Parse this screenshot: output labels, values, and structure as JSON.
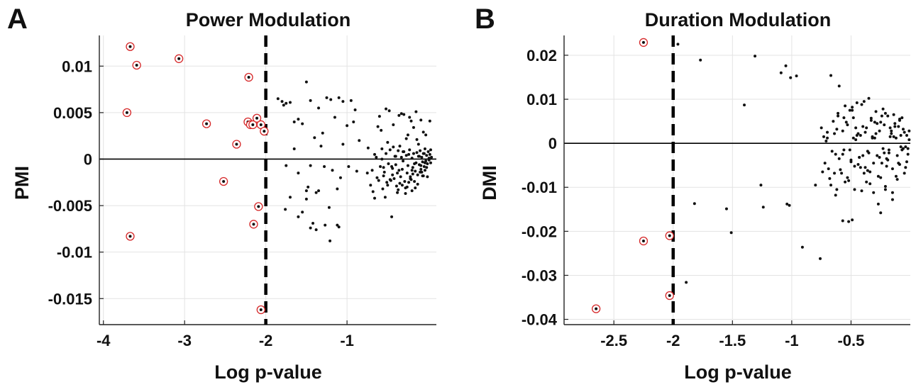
{
  "chart_data": [
    {
      "type": "scatter",
      "panel_label": "A",
      "title": "Power Modulation",
      "xlabel": "Log p-value",
      "ylabel": "PMI",
      "xlim": [
        -4.05,
        0.1
      ],
      "ylim": [
        -0.0178,
        0.0133
      ],
      "xticks": [
        -4,
        -3,
        -2,
        -1
      ],
      "xtick_labels": [
        "-4",
        "-3",
        "-2",
        "-1"
      ],
      "yticks": [
        -0.015,
        -0.01,
        -0.005,
        0,
        0.005,
        0.01
      ],
      "ytick_labels": [
        "-0.015",
        "-0.01",
        "-0.005",
        "0",
        "0.005",
        "0.01"
      ],
      "grid": true,
      "threshold": -2,
      "colors": {
        "point": "#111111",
        "highlight_ring": "#d62728",
        "threshold": "#000000",
        "grid": "#e3e3e3"
      },
      "series": [
        {
          "style": "highlighted",
          "x": [
            -3.67,
            -3.59,
            -3.71,
            -3.67,
            -3.07,
            -2.73,
            -2.52,
            -2.36,
            -2.21,
            -2.22,
            -2.19,
            -2.16,
            -2.11,
            -2.06,
            -2.02,
            -2.09,
            -2.15,
            -2.06
          ],
          "y": [
            0.0121,
            0.0101,
            0.005,
            -0.0083,
            0.0108,
            0.0038,
            -0.0024,
            0.0016,
            0.0088,
            0.004,
            0.0037,
            0.0037,
            0.0044,
            0.0037,
            0.003,
            -0.0051,
            -0.007,
            -0.0162
          ]
        },
        {
          "style": "plain",
          "x": [
            -1.85,
            -1.8,
            -1.75,
            -1.7,
            -1.6,
            -1.5,
            -1.45,
            -1.35,
            -1.25,
            -1.2,
            -1.1,
            -1.05,
            -0.95,
            -0.9,
            -1.78,
            -1.65,
            -1.55,
            -1.4,
            -1.32,
            -1.15,
            -1.0,
            -0.92,
            -1.45,
            -1.65,
            -1.3,
            -1.05,
            -0.85,
            -0.75,
            -1.75,
            -1.6,
            -1.48,
            -1.38,
            -1.28,
            -1.18,
            -1.08,
            -0.98,
            -0.88,
            -1.7,
            -1.5,
            -1.35,
            -1.22,
            -1.12,
            -1.55,
            -1.42,
            -1.27,
            -1.1,
            -1.76,
            -1.6,
            -1.45,
            -1.38,
            -1.21,
            -1.12,
            -1.5
          ],
          "y": [
            0.0065,
            0.0062,
            0.006,
            0.0061,
            0.0043,
            0.0083,
            0.0063,
            0.0055,
            0.0066,
            0.0064,
            0.0066,
            0.0062,
            0.0063,
            0.0053,
            0.0058,
            0.004,
            0.0038,
            0.0023,
            0.0014,
            0.0045,
            0.0036,
            0.004,
            -0.0007,
            0.0011,
            0.0028,
            0.0016,
            0.002,
            -0.0015,
            -0.0007,
            -0.0015,
            -0.003,
            -0.0036,
            -0.0008,
            -0.0012,
            -0.002,
            -0.0008,
            -0.0013,
            -0.0041,
            -0.0043,
            -0.0034,
            -0.0052,
            -0.0032,
            -0.0057,
            -0.0069,
            -0.0071,
            -0.0073,
            -0.0054,
            -0.0062,
            -0.0074,
            -0.0076,
            -0.0088,
            -0.0071,
            -0.0034
          ]
        },
        {
          "style": "plain",
          "x": [
            -0.74,
            -0.69,
            -0.66,
            -0.61,
            -0.57,
            -0.55,
            -0.52,
            -0.5,
            -0.47,
            -0.45,
            -0.43,
            -0.42,
            -0.4,
            -0.38,
            -0.37,
            -0.35,
            -0.33,
            -0.32,
            -0.3,
            -0.28,
            -0.27,
            -0.25,
            -0.23,
            -0.22,
            -0.2,
            -0.19,
            -0.18,
            -0.16,
            -0.15,
            -0.14,
            -0.13,
            -0.12,
            -0.11,
            -0.1,
            -0.09,
            -0.08,
            -0.07,
            -0.06,
            -0.05,
            -0.04,
            -0.03,
            -0.02,
            -0.01,
            0.0,
            0.01,
            0.02,
            0.03,
            0.04,
            -0.71,
            -0.64,
            -0.59,
            -0.54,
            -0.49,
            -0.46,
            -0.41,
            -0.36,
            -0.34,
            -0.31,
            -0.26,
            -0.24,
            -0.21,
            -0.17,
            -0.11,
            -0.08,
            -0.05,
            -0.02,
            0.01,
            -0.68,
            -0.63,
            -0.56,
            -0.51,
            -0.44,
            -0.39,
            -0.29,
            -0.19,
            -0.13,
            -0.07,
            -0.04,
            -0.6,
            -0.48,
            -0.33,
            -0.23,
            -0.15,
            -0.09,
            -0.03,
            0.02,
            -0.58,
            -0.43,
            -0.36,
            -0.27,
            -0.18,
            -0.12,
            -0.06,
            0.03,
            -0.52,
            -0.3,
            -0.21,
            -0.14,
            -0.53,
            -0.38,
            -0.28,
            -0.16,
            -0.01,
            -0.66,
            -0.47,
            -0.24,
            -0.2,
            -0.1,
            -0.45,
            -0.32,
            -0.22,
            -0.06,
            -0.5,
            -0.62,
            -0.55,
            -0.4,
            -0.35,
            -0.25,
            -0.17,
            -0.44,
            -0.31,
            -0.26,
            -0.2,
            -0.09,
            -0.04,
            -0.37,
            -0.57
          ],
          "y": [
            0.0012,
            -0.0012,
            0.0005,
            -0.0023,
            0.0011,
            -0.0018,
            0.0006,
            -0.0028,
            0.001,
            -0.0008,
            0.0013,
            -0.0021,
            0.0003,
            -0.0015,
            0.0009,
            -0.0026,
            0.0002,
            -0.0011,
            0.0008,
            -0.0031,
            0.0004,
            -0.0007,
            0.001,
            -0.0019,
            0.0001,
            -0.0009,
            0.0006,
            -0.0013,
            -0.0004,
            0.0007,
            -0.0017,
            0.0003,
            -0.0006,
            0.0009,
            -0.0011,
            0.0002,
            -0.0003,
            0.0006,
            -0.0008,
            0.0011,
            -0.0002,
            0.0004,
            -0.0005,
            0.0008,
            -0.0001,
            0.0005,
            -0.0004,
            0.0002,
            -0.0028,
            0.0002,
            -0.0008,
            -0.0014,
            -0.0005,
            -0.0023,
            0.0003,
            -0.0012,
            -0.0019,
            -0.0002,
            -0.0015,
            0.0005,
            -0.0022,
            -0.0005,
            0.0003,
            -0.0014,
            0.0006,
            -0.0009,
            0.0001,
            -0.0035,
            -0.002,
            -0.0032,
            -0.0025,
            -0.001,
            -0.0029,
            -0.0024,
            -0.0016,
            -0.0027,
            -0.0018,
            -0.0012,
            0.0046,
            0.0052,
            0.0049,
            0.0045,
            0.0051,
            0.0042,
            0.0026,
            0.0041,
            0.0031,
            0.0037,
            0.0047,
            0.0022,
            0.0034,
            0.0016,
            0.0029,
            0.001,
            0.0054,
            0.0048,
            0.0041,
            0.0021,
            -0.0041,
            -0.0036,
            -0.0037,
            -0.0031,
            -0.0019,
            -0.0042,
            -0.0022,
            -0.0025,
            -0.0034,
            -0.0014,
            -0.0062,
            -0.0028,
            -0.0021,
            -0.0018,
            0.0018,
            0.0035,
            -0.0009,
            -0.0006,
            0.0014,
            0.0026,
            -0.0024,
            -0.0017,
            0.0008,
            -0.003,
            -0.0012,
            -0.0007,
            -0.0004,
            -0.0033,
            0.0
          ]
        }
      ]
    },
    {
      "type": "scatter",
      "panel_label": "B",
      "title": "Duration Modulation",
      "xlabel": "Log p-value",
      "ylabel": "DMI",
      "xlim": [
        -2.92,
        0.0
      ],
      "ylim": [
        -0.0412,
        0.0245
      ],
      "xticks": [
        -2.5,
        -2,
        -1.5,
        -1,
        -0.5
      ],
      "xtick_labels": [
        "-2.5",
        "-2",
        "-1.5",
        "-1",
        "-0.5"
      ],
      "yticks": [
        -0.04,
        -0.03,
        -0.02,
        -0.01,
        0,
        0.01,
        0.02
      ],
      "ytick_labels": [
        "-0.04",
        "-0.03",
        "-0.02",
        "-0.01",
        "0",
        "0.01",
        "0.02"
      ],
      "grid": true,
      "threshold": -2,
      "colors": {
        "point": "#111111",
        "highlight_ring": "#d62728",
        "threshold": "#000000",
        "grid": "#e3e3e3"
      },
      "series": [
        {
          "style": "highlighted",
          "x": [
            -2.25,
            -2.25,
            -2.03,
            -2.03,
            -2.65
          ],
          "y": [
            0.0229,
            -0.0222,
            -0.021,
            -0.0346,
            -0.0376
          ]
        },
        {
          "style": "plain",
          "x": [
            -1.96,
            -1.77,
            -1.31,
            -1.09,
            -1.05,
            -1.01,
            -0.96,
            -1.4,
            -0.67,
            -0.6,
            -1.26,
            -1.24,
            -1.55,
            -1.51,
            -1.89,
            -1.82,
            -1.04,
            -0.91,
            -0.76,
            -1.02,
            -0.8,
            -0.57,
            -0.52,
            -0.49
          ],
          "y": [
            0.0225,
            0.0189,
            0.0198,
            0.016,
            0.0176,
            0.0149,
            0.0153,
            0.0087,
            0.0154,
            0.013,
            -0.0095,
            -0.0145,
            -0.0149,
            -0.0203,
            -0.0316,
            -0.0137,
            -0.0138,
            -0.0236,
            -0.0262,
            -0.0141,
            -0.0095,
            -0.0176,
            -0.0178,
            -0.0174
          ]
        },
        {
          "style": "plain",
          "x": [
            -0.75,
            -0.72,
            -0.7,
            -0.68,
            -0.65,
            -0.63,
            -0.61,
            -0.59,
            -0.57,
            -0.55,
            -0.53,
            -0.51,
            -0.49,
            -0.47,
            -0.45,
            -0.43,
            -0.41,
            -0.39,
            -0.37,
            -0.35,
            -0.33,
            -0.31,
            -0.29,
            -0.27,
            -0.25,
            -0.23,
            -0.21,
            -0.19,
            -0.17,
            -0.15,
            -0.13,
            -0.11,
            -0.09,
            -0.07,
            -0.05,
            -0.03,
            -0.01,
            -0.74,
            -0.71,
            -0.67,
            -0.64,
            -0.6,
            -0.56,
            -0.52,
            -0.48,
            -0.44,
            -0.4,
            -0.36,
            -0.32,
            -0.28,
            -0.24,
            -0.2,
            -0.16,
            -0.12,
            -0.08,
            -0.04,
            -0.66,
            -0.62,
            -0.58,
            -0.54,
            -0.5,
            -0.46,
            -0.42,
            -0.38,
            -0.34,
            -0.3,
            -0.26,
            -0.22,
            -0.18,
            -0.14,
            -0.1,
            -0.06,
            -0.02,
            -0.73,
            -0.69,
            -0.63,
            -0.55,
            -0.47,
            -0.39,
            -0.31,
            -0.23,
            -0.15,
            -0.07,
            -0.61,
            -0.53,
            -0.45,
            -0.37,
            -0.29,
            -0.21,
            -0.13,
            -0.05,
            -0.57,
            -0.49,
            -0.41,
            -0.33,
            -0.25,
            -0.17,
            -0.09,
            -0.01,
            -0.7,
            -0.62,
            -0.44,
            -0.36,
            -0.28,
            -0.2,
            -0.12,
            -0.04,
            -0.5,
            -0.42,
            -0.34,
            -0.26,
            -0.18,
            -0.1,
            -0.02,
            -0.64,
            -0.48,
            -0.4,
            -0.32,
            -0.24,
            -0.16,
            -0.08,
            -0.56,
            -0.46,
            -0.38,
            -0.3,
            -0.22,
            -0.14,
            -0.06,
            -0.35,
            -0.27,
            -0.19,
            -0.11,
            -0.03,
            -0.43,
            -0.25,
            -0.15,
            -0.51,
            -0.21,
            -0.09
          ],
          "y": [
            0.0035,
            -0.0045,
            0.0012,
            -0.008,
            0.005,
            -0.0025,
            0.0062,
            -0.006,
            0.0028,
            -0.0088,
            0.0042,
            -0.0015,
            0.0075,
            -0.0052,
            0.0018,
            -0.0032,
            0.0088,
            -0.0068,
            0.0035,
            -0.0022,
            0.0057,
            -0.0045,
            0.0022,
            -0.0075,
            0.0048,
            -0.0012,
            0.0068,
            -0.0038,
            0.0015,
            -0.0058,
            0.0038,
            -0.0028,
            0.0052,
            -0.0015,
            0.0025,
            -0.0042,
            0.0008,
            -0.0065,
            0.0005,
            -0.0095,
            0.0022,
            -0.0035,
            0.0058,
            -0.0085,
            0.0012,
            -0.0048,
            0.0038,
            -0.0062,
            0.0015,
            -0.0028,
            0.0062,
            -0.0052,
            0.0028,
            -0.0075,
            0.0018,
            -0.0008,
            -0.0018,
            0.0032,
            -0.0068,
            0.0048,
            -0.0038,
            0.0008,
            -0.0055,
            0.0025,
            -0.0092,
            0.0012,
            -0.0032,
            0.0042,
            -0.0022,
            0.0065,
            -0.0045,
            0.0032,
            -0.0012,
            0.0015,
            -0.0058,
            -0.0118,
            0.0085,
            -0.0105,
            0.0095,
            -0.0112,
            0.0078,
            -0.0128,
            0.0058,
            0.0068,
            -0.0078,
            0.0092,
            -0.0088,
            0.0072,
            -0.0098,
            0.0045,
            -0.0068,
            -0.0025,
            0.0082,
            -0.0108,
            0.0052,
            -0.0078,
            0.0035,
            -0.0048,
            0.0028,
            0.0025,
            -0.0105,
            0.0022,
            -0.0018,
            0.0045,
            -0.0035,
            0.0012,
            -0.0055,
            -0.0042,
            0.0018,
            -0.0065,
            0.0028,
            -0.0015,
            0.0038,
            -0.0025,
            -0.0068,
            0.0058,
            -0.0028,
            0.0012,
            -0.0045,
            0.0022,
            -0.0008,
            -0.0015,
            0.0035,
            -0.0055,
            0.0048,
            -0.0022,
            0.0015,
            -0.0012,
            0.0102,
            -0.0138,
            0.0062,
            -0.0082,
            0.0018,
            -0.0032,
            -0.0158,
            -0.0112,
            0.0075,
            -0.0105,
            0.0055
          ]
        }
      ]
    }
  ]
}
